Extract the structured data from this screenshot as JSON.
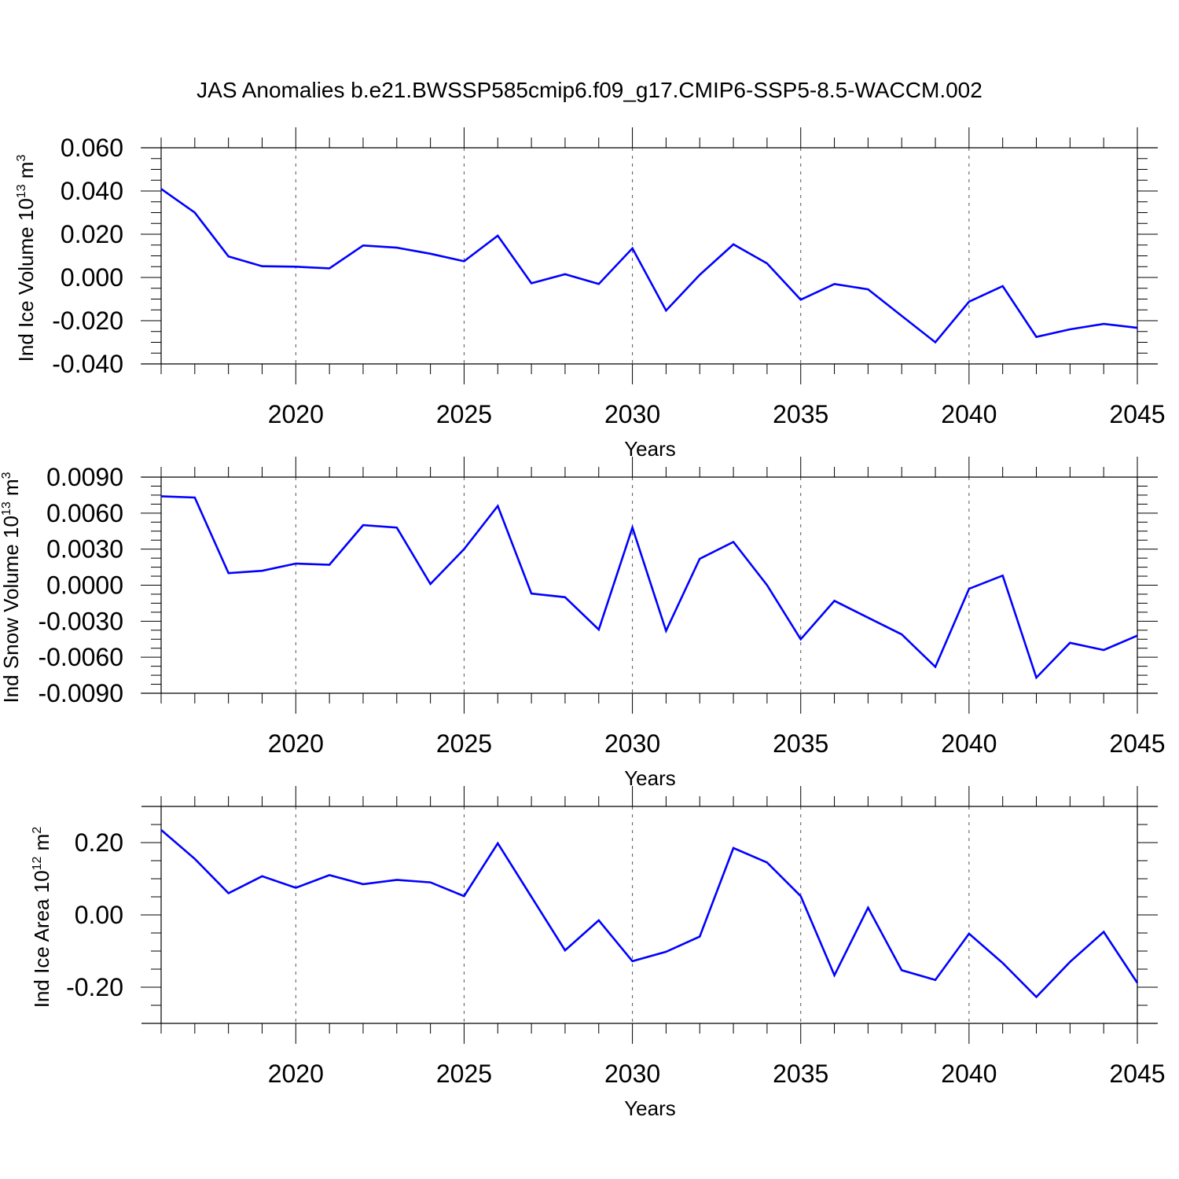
{
  "title": "JAS Anomalies b.e21.BWSSP585cmip6.f09_g17.CMIP6-SSP5-8.5-WACCM.002",
  "colors": {
    "line": "#0000ff",
    "axis": "#000000",
    "grid": "#555555"
  },
  "chart_data": [
    {
      "type": "line",
      "ylabel": {
        "prefix": "Ind Ice Volume 10",
        "exp": "13",
        "unit": " m",
        "unit_exp": "3"
      },
      "xlabel": "Years",
      "x": [
        2016,
        2017,
        2018,
        2019,
        2020,
        2021,
        2022,
        2023,
        2024,
        2025,
        2026,
        2027,
        2028,
        2029,
        2030,
        2031,
        2032,
        2033,
        2034,
        2035,
        2036,
        2037,
        2038,
        2039,
        2040,
        2041,
        2042,
        2043,
        2044,
        2045
      ],
      "values": [
        0.041,
        0.03,
        0.0097,
        0.0052,
        0.005,
        0.0042,
        0.0148,
        0.0138,
        0.011,
        0.0075,
        0.0193,
        -0.0027,
        0.0015,
        -0.003,
        0.0135,
        -0.0153,
        0.0012,
        0.0153,
        0.0065,
        -0.0103,
        -0.003,
        -0.0055,
        -0.0178,
        -0.03,
        -0.0112,
        -0.004,
        -0.0275,
        -0.024,
        -0.0215,
        -0.0233
      ],
      "xlim": [
        2016,
        2045
      ],
      "ylim": [
        -0.04,
        0.06
      ],
      "ytick_values": [
        0.06,
        0.04,
        0.02,
        0.0,
        -0.02,
        -0.04
      ],
      "ytick_labels": [
        "0.060",
        "0.040",
        "0.020",
        "0.000",
        "-0.020",
        "-0.040"
      ],
      "xtick_values": [
        2020,
        2025,
        2030,
        2035,
        2040,
        2045
      ],
      "xtick_labels": [
        "2020",
        "2025",
        "2030",
        "2035",
        "2040",
        "2045"
      ],
      "grid": "vertical dashed at labeled years"
    },
    {
      "type": "line",
      "ylabel": {
        "prefix": "Ind Snow Volume 10",
        "exp": "13",
        "unit": " m",
        "unit_exp": "3"
      },
      "xlabel": "Years",
      "x": [
        2016,
        2017,
        2018,
        2019,
        2020,
        2021,
        2022,
        2023,
        2024,
        2025,
        2026,
        2027,
        2028,
        2029,
        2030,
        2031,
        2032,
        2033,
        2034,
        2035,
        2036,
        2037,
        2038,
        2039,
        2040,
        2041,
        2042,
        2043,
        2044,
        2045
      ],
      "values": [
        0.0074,
        0.0073,
        0.001,
        0.0012,
        0.0018,
        0.0017,
        0.005,
        0.0048,
        0.0001,
        0.003,
        0.0066,
        -0.0007,
        -0.001,
        -0.0037,
        0.0048,
        -0.0038,
        0.0022,
        0.0036,
        0.0,
        -0.0045,
        -0.0013,
        -0.0027,
        -0.0041,
        -0.0068,
        -0.0003,
        0.0008,
        -0.0077,
        -0.0048,
        -0.0054,
        -0.0042
      ],
      "xlim": [
        2016,
        2045
      ],
      "ylim": [
        -0.009,
        0.009
      ],
      "ytick_values": [
        0.009,
        0.006,
        0.003,
        0.0,
        -0.003,
        -0.006,
        -0.009
      ],
      "ytick_labels": [
        "0.0090",
        "0.0060",
        "0.0030",
        "0.0000",
        "-0.0030",
        "-0.0060",
        "-0.0090"
      ],
      "xtick_values": [
        2020,
        2025,
        2030,
        2035,
        2040,
        2045
      ],
      "xtick_labels": [
        "2020",
        "2025",
        "2030",
        "2035",
        "2040",
        "2045"
      ],
      "grid": "vertical dashed at labeled years"
    },
    {
      "type": "line",
      "ylabel": {
        "prefix": "Ind Ice Area 10",
        "exp": "12",
        "unit": " m",
        "unit_exp": "2"
      },
      "xlabel": "Years",
      "x": [
        2016,
        2017,
        2018,
        2019,
        2020,
        2021,
        2022,
        2023,
        2024,
        2025,
        2026,
        2027,
        2028,
        2029,
        2030,
        2031,
        2032,
        2033,
        2034,
        2035,
        2036,
        2037,
        2038,
        2039,
        2040,
        2041,
        2042,
        2043,
        2044,
        2045
      ],
      "values": [
        0.235,
        0.155,
        0.06,
        0.107,
        0.075,
        0.11,
        0.085,
        0.097,
        0.09,
        0.052,
        0.198,
        0.05,
        -0.098,
        -0.015,
        -0.128,
        -0.102,
        -0.06,
        0.185,
        0.145,
        0.052,
        -0.167,
        0.02,
        -0.153,
        -0.18,
        -0.052,
        -0.133,
        -0.227,
        -0.13,
        -0.047,
        -0.188
      ],
      "xlim": [
        2016,
        2045
      ],
      "ylim": [
        -0.3,
        0.3
      ],
      "ytick_values": [
        0.2,
        0.0,
        -0.2
      ],
      "ytick_labels": [
        "0.20",
        "0.00",
        "-0.20"
      ],
      "xtick_values": [
        2020,
        2025,
        2030,
        2035,
        2040,
        2045
      ],
      "xtick_labels": [
        "2020",
        "2025",
        "2030",
        "2035",
        "2040",
        "2045"
      ],
      "grid": "vertical dashed at labeled years"
    }
  ]
}
